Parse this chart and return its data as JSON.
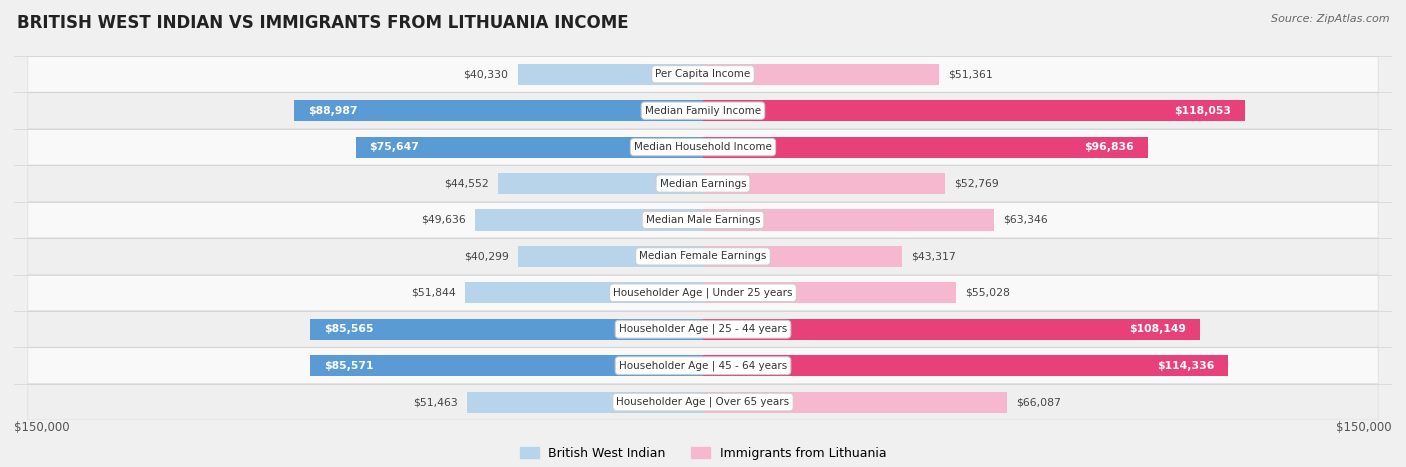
{
  "title": "BRITISH WEST INDIAN VS IMMIGRANTS FROM LITHUANIA INCOME",
  "source": "Source: ZipAtlas.com",
  "categories": [
    "Per Capita Income",
    "Median Family Income",
    "Median Household Income",
    "Median Earnings",
    "Median Male Earnings",
    "Median Female Earnings",
    "Householder Age | Under 25 years",
    "Householder Age | 25 - 44 years",
    "Householder Age | 45 - 64 years",
    "Householder Age | Over 65 years"
  ],
  "left_values": [
    40330,
    88987,
    75647,
    44552,
    49636,
    40299,
    51844,
    85565,
    85571,
    51463
  ],
  "right_values": [
    51361,
    118053,
    96836,
    52769,
    63346,
    43317,
    55028,
    108149,
    114336,
    66087
  ],
  "left_labels": [
    "$40,330",
    "$88,987",
    "$75,647",
    "$44,552",
    "$49,636",
    "$40,299",
    "$51,844",
    "$85,565",
    "$85,571",
    "$51,463"
  ],
  "right_labels": [
    "$51,361",
    "$118,053",
    "$96,836",
    "$52,769",
    "$63,346",
    "$43,317",
    "$55,028",
    "$108,149",
    "$114,336",
    "$66,087"
  ],
  "left_color_light": "#b8d4ea",
  "right_color_light": "#f5b8ce",
  "left_color_solid": "#5b9bd5",
  "right_color_solid": "#e8417a",
  "large_threshold": 70000,
  "max_value": 150000,
  "background_color": "#f0f0f0",
  "row_bg_even": "#f9f9f9",
  "row_bg_odd": "#efefef",
  "legend_left": "British West Indian",
  "legend_right": "Immigrants from Lithuania",
  "axis_label_left": "$150,000",
  "axis_label_right": "$150,000",
  "label_fontsize": 7.8,
  "cat_fontsize": 7.5,
  "title_fontsize": 12
}
